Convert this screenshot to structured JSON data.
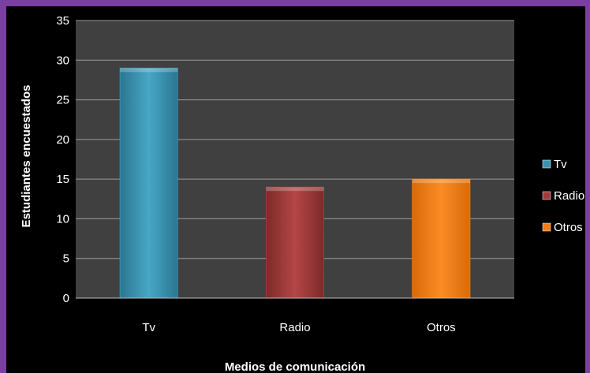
{
  "chart_data": {
    "type": "bar",
    "categories": [
      "Tv",
      "Radio",
      "Otros"
    ],
    "values": [
      29,
      14,
      15
    ],
    "colors": [
      "#3b93b0",
      "#a23a3a",
      "#f07e15"
    ],
    "legend": [
      "Tv",
      "Radio",
      "Otros"
    ],
    "legend_position": "right",
    "xlabel": "Medios de comunicación",
    "ylabel": "Estudiantes encuestados",
    "ylim": [
      0,
      35
    ],
    "yticks": [
      0,
      5,
      10,
      15,
      20,
      25,
      30,
      35
    ],
    "grid": true,
    "plot_background": "#404040",
    "page_background": "#000000",
    "border_color": "#7a3fa0"
  }
}
